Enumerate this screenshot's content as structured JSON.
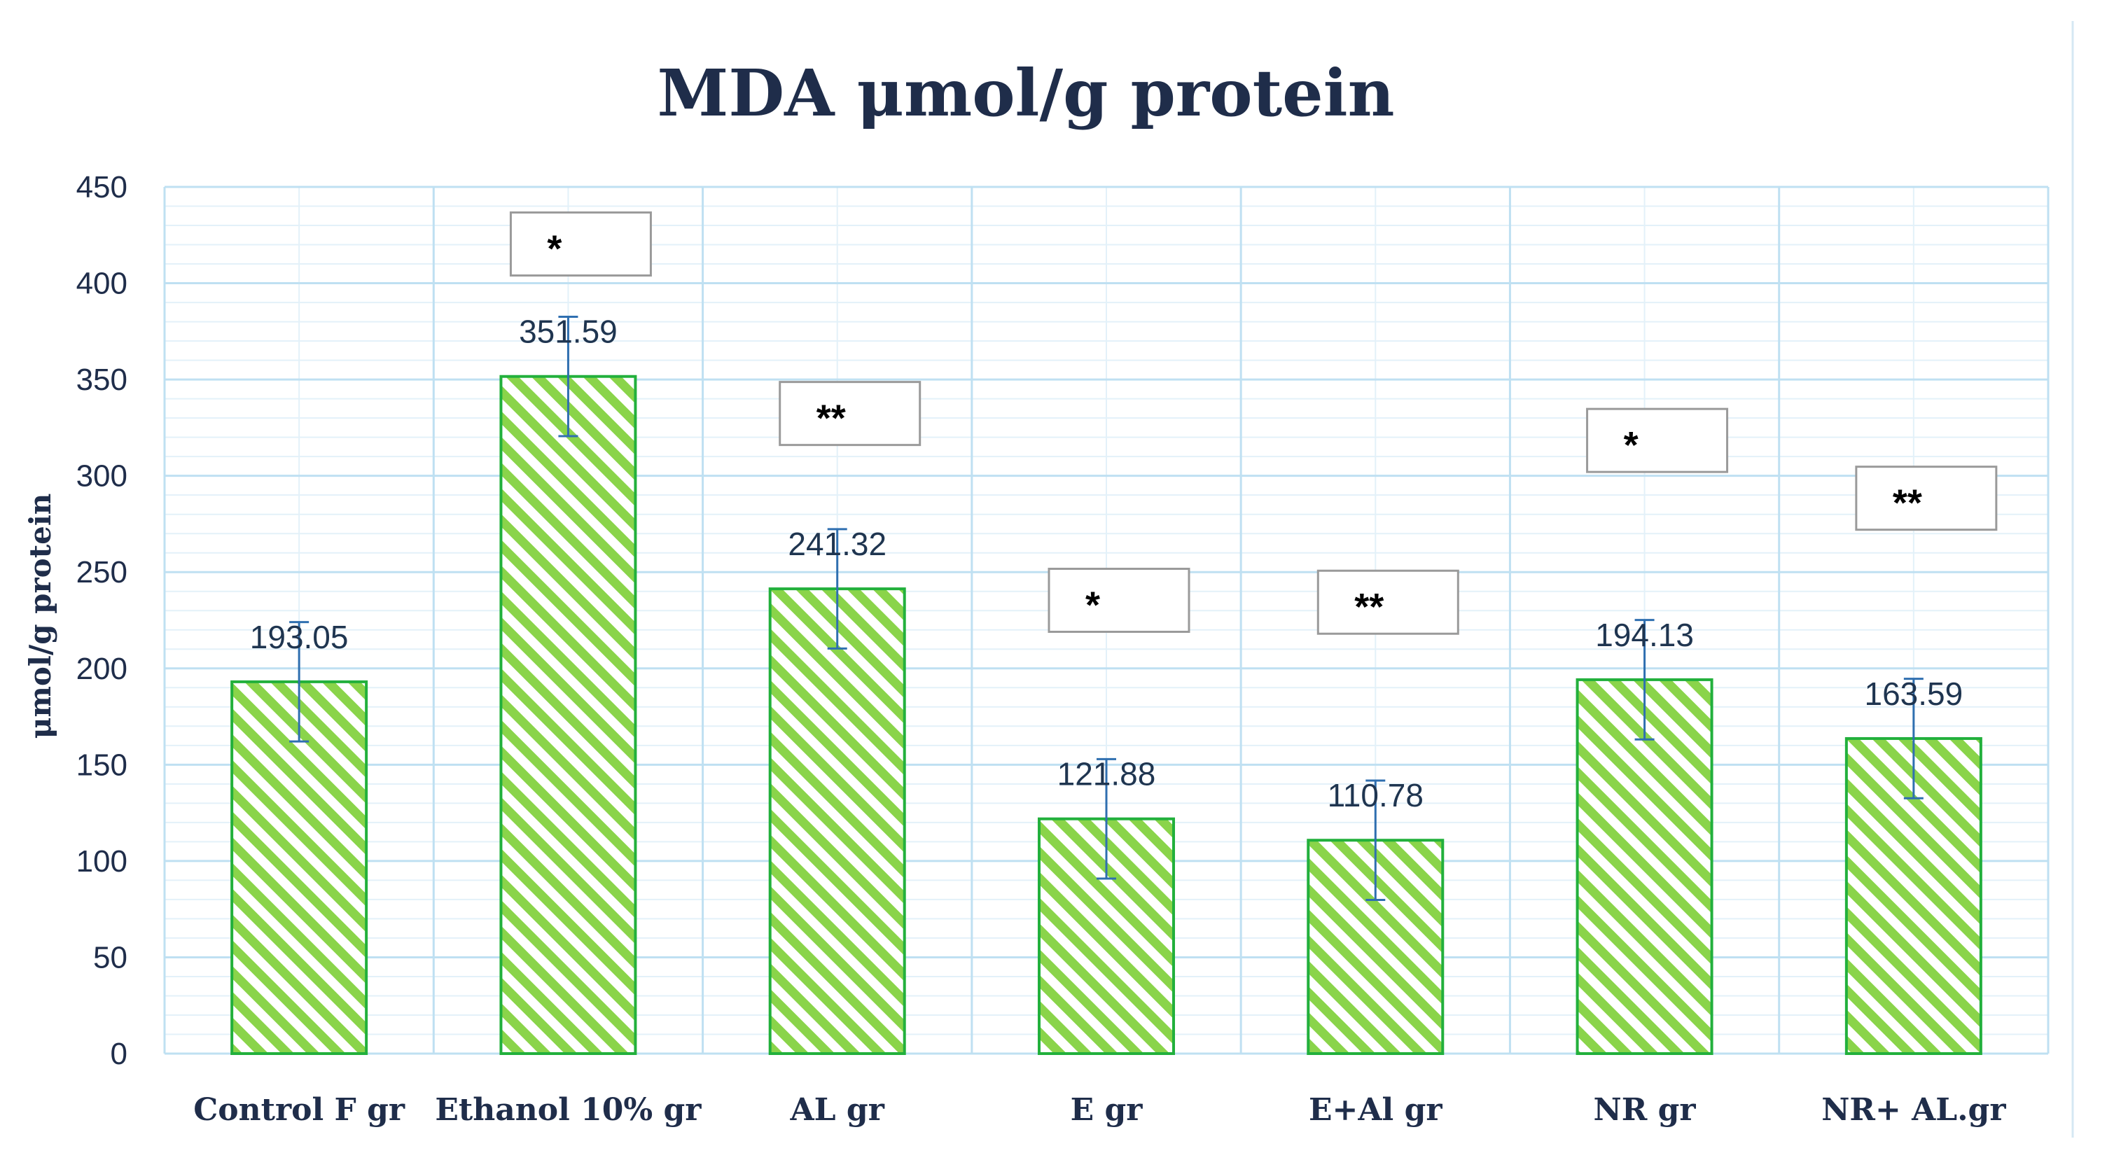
{
  "chart_data": {
    "type": "bar",
    "title": "MDA μmol/g protein",
    "xlabel": "",
    "ylabel": "μmol/g protein",
    "ylim": [
      0,
      450
    ],
    "yticks": [
      0,
      50,
      100,
      150,
      200,
      250,
      300,
      350,
      400,
      450
    ],
    "grid": true,
    "categories": [
      "Control F gr",
      "Ethanol 10% gr",
      "AL gr",
      "E gr",
      "E+Al gr",
      "NR gr",
      "NR+ AL.gr"
    ],
    "values": [
      193.05,
      351.59,
      241.32,
      121.88,
      110.78,
      194.13,
      163.59
    ],
    "data_labels": [
      "193.05",
      "351.59",
      "241.32",
      "121.88",
      "110.78",
      "194.13",
      "163.59"
    ],
    "error_bars": [
      31,
      31,
      31,
      31,
      31,
      31,
      31
    ],
    "significance": [
      {
        "category": "Ethanol 10% gr",
        "label": "*",
        "y": 420
      },
      {
        "category": "AL gr",
        "label": "**",
        "y": 332
      },
      {
        "category": "E gr",
        "label": "*",
        "y": 235
      },
      {
        "category": "E+Al gr",
        "label": "**",
        "y": 234
      },
      {
        "category": "NR gr",
        "label": "*",
        "y": 318
      },
      {
        "category": "NR+ AL.gr",
        "label": "**",
        "y": 288
      }
    ],
    "colors": {
      "bar_stroke": "#22b03c",
      "hatch": "#8ad44a",
      "error": "#2f6fb0",
      "grid": "#bfe0f2",
      "text": "#1f2d4a"
    }
  }
}
